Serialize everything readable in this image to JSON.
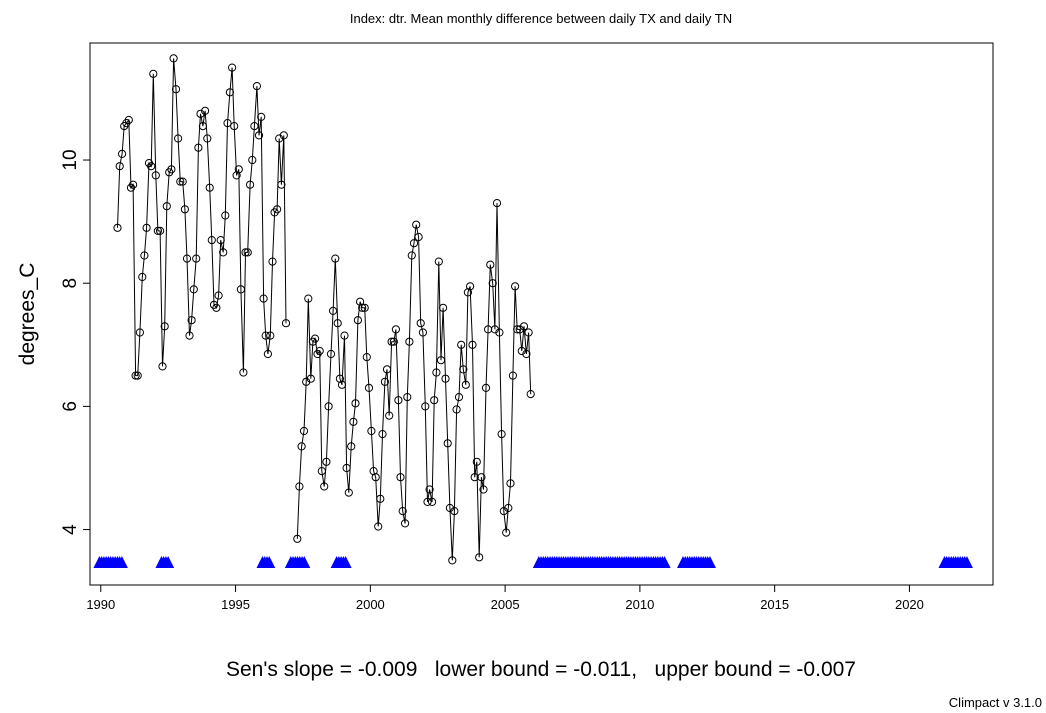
{
  "chart_data": {
    "type": "line",
    "title": "Index: dtr. Mean monthly difference between daily TX and daily TN",
    "xlabel": "",
    "ylabel": "degrees_C",
    "xlim": [
      1989.6,
      2023.1
    ],
    "ylim": [
      3.1,
      11.9
    ],
    "xticks": [
      1990,
      1995,
      2000,
      2005,
      2010,
      2015,
      2020
    ],
    "yticks": [
      4,
      6,
      8,
      10
    ],
    "xtick_labels": [
      "1990",
      "1995",
      "2000",
      "2005",
      "2010",
      "2015",
      "2020"
    ],
    "ytick_labels": [
      "4",
      "6",
      "8",
      "10"
    ],
    "grid": false,
    "series": [
      {
        "values": [
          [
            1990.62,
            8.9
          ],
          [
            1990.7,
            9.9
          ],
          [
            1990.79,
            10.1
          ],
          [
            1990.87,
            10.55
          ],
          [
            1990.95,
            10.6
          ],
          [
            1991.04,
            10.65
          ],
          [
            1991.12,
            9.55
          ],
          [
            1991.2,
            9.6
          ],
          [
            1991.29,
            6.5
          ],
          [
            1991.37,
            6.5
          ],
          [
            1991.45,
            7.2
          ],
          [
            1991.54,
            8.1
          ],
          [
            1991.62,
            8.45
          ],
          [
            1991.7,
            8.9
          ],
          [
            1991.79,
            9.95
          ],
          [
            1991.87,
            9.9
          ],
          [
            1991.95,
            11.4
          ],
          [
            1992.04,
            9.75
          ],
          [
            1992.12,
            8.85
          ],
          [
            1992.2,
            8.85
          ],
          [
            1992.29,
            6.65
          ],
          [
            1992.37,
            7.3
          ],
          [
            1992.45,
            9.25
          ],
          [
            1992.54,
            9.8
          ],
          [
            1992.62,
            9.85
          ],
          [
            1992.7,
            11.65
          ],
          [
            1992.79,
            11.15
          ],
          [
            1992.87,
            10.35
          ],
          [
            1992.95,
            9.65
          ],
          [
            1993.04,
            9.65
          ],
          [
            1993.12,
            9.2
          ],
          [
            1993.2,
            8.4
          ],
          [
            1993.29,
            7.15
          ],
          [
            1993.37,
            7.4
          ],
          [
            1993.45,
            7.9
          ],
          [
            1993.54,
            8.4
          ],
          [
            1993.62,
            10.2
          ],
          [
            1993.7,
            10.75
          ],
          [
            1993.79,
            10.55
          ],
          [
            1993.87,
            10.8
          ],
          [
            1993.95,
            10.35
          ],
          [
            1994.04,
            9.55
          ],
          [
            1994.12,
            8.7
          ],
          [
            1994.2,
            7.65
          ],
          [
            1994.29,
            7.6
          ],
          [
            1994.37,
            7.8
          ],
          [
            1994.45,
            8.7
          ],
          [
            1994.54,
            8.5
          ],
          [
            1994.62,
            9.1
          ],
          [
            1994.7,
            10.6
          ],
          [
            1994.79,
            11.1
          ],
          [
            1994.87,
            11.5
          ],
          [
            1994.95,
            10.55
          ],
          [
            1995.04,
            9.75
          ],
          [
            1995.12,
            9.85
          ],
          [
            1995.2,
            7.9
          ],
          [
            1995.29,
            6.55
          ],
          [
            1995.37,
            8.5
          ],
          [
            1995.45,
            8.5
          ],
          [
            1995.54,
            9.6
          ],
          [
            1995.62,
            10.0
          ],
          [
            1995.7,
            10.55
          ],
          [
            1995.79,
            11.2
          ],
          [
            1995.87,
            10.4
          ],
          [
            1995.95,
            10.7
          ],
          [
            1996.04,
            7.75
          ],
          [
            1996.12,
            7.15
          ],
          [
            1996.2,
            6.85
          ],
          [
            1996.29,
            7.15
          ],
          [
            1996.37,
            8.35
          ],
          [
            1996.45,
            9.15
          ],
          [
            1996.54,
            9.2
          ],
          [
            1996.62,
            10.35
          ],
          [
            1996.7,
            9.6
          ],
          [
            1996.79,
            10.4
          ],
          [
            1996.87,
            7.35
          ],
          [
            1997.29,
            3.85
          ],
          [
            1997.37,
            4.7
          ],
          [
            1997.45,
            5.35
          ],
          [
            1997.54,
            5.6
          ],
          [
            1997.62,
            6.4
          ],
          [
            1997.7,
            7.75
          ],
          [
            1997.79,
            6.45
          ],
          [
            1997.87,
            7.05
          ],
          [
            1997.95,
            7.1
          ],
          [
            1998.04,
            6.85
          ],
          [
            1998.12,
            6.9
          ],
          [
            1998.2,
            4.95
          ],
          [
            1998.29,
            4.7
          ],
          [
            1998.37,
            5.1
          ],
          [
            1998.45,
            6.0
          ],
          [
            1998.54,
            6.85
          ],
          [
            1998.62,
            7.55
          ],
          [
            1998.7,
            8.4
          ],
          [
            1998.79,
            7.35
          ],
          [
            1998.87,
            6.45
          ],
          [
            1998.95,
            6.35
          ],
          [
            1999.04,
            7.15
          ],
          [
            1999.12,
            5.0
          ],
          [
            1999.2,
            4.6
          ],
          [
            1999.29,
            5.35
          ],
          [
            1999.37,
            5.75
          ],
          [
            1999.45,
            6.05
          ],
          [
            1999.54,
            7.4
          ],
          [
            1999.62,
            7.7
          ],
          [
            1999.7,
            7.6
          ],
          [
            1999.79,
            7.6
          ],
          [
            1999.87,
            6.8
          ],
          [
            1999.95,
            6.3
          ],
          [
            2000.04,
            5.6
          ],
          [
            2000.12,
            4.95
          ],
          [
            2000.2,
            4.85
          ],
          [
            2000.29,
            4.05
          ],
          [
            2000.37,
            4.5
          ],
          [
            2000.45,
            5.55
          ],
          [
            2000.54,
            6.4
          ],
          [
            2000.62,
            6.6
          ],
          [
            2000.7,
            5.85
          ],
          [
            2000.79,
            7.05
          ],
          [
            2000.87,
            7.05
          ],
          [
            2000.95,
            7.25
          ],
          [
            2001.04,
            6.1
          ],
          [
            2001.12,
            4.85
          ],
          [
            2001.2,
            4.3
          ],
          [
            2001.29,
            4.1
          ],
          [
            2001.37,
            6.15
          ],
          [
            2001.45,
            7.05
          ],
          [
            2001.54,
            8.45
          ],
          [
            2001.62,
            8.65
          ],
          [
            2001.7,
            8.95
          ],
          [
            2001.79,
            8.75
          ],
          [
            2001.87,
            7.35
          ],
          [
            2001.95,
            7.2
          ],
          [
            2002.04,
            6.0
          ],
          [
            2002.12,
            4.45
          ],
          [
            2002.2,
            4.65
          ],
          [
            2002.29,
            4.45
          ],
          [
            2002.37,
            6.1
          ],
          [
            2002.45,
            6.55
          ],
          [
            2002.54,
            8.35
          ],
          [
            2002.62,
            6.75
          ],
          [
            2002.7,
            7.6
          ],
          [
            2002.79,
            6.45
          ],
          [
            2002.87,
            5.4
          ],
          [
            2002.95,
            4.35
          ],
          [
            2003.04,
            3.5
          ],
          [
            2003.12,
            4.3
          ],
          [
            2003.2,
            5.95
          ],
          [
            2003.29,
            6.15
          ],
          [
            2003.37,
            7.0
          ],
          [
            2003.45,
            6.6
          ],
          [
            2003.54,
            6.35
          ],
          [
            2003.62,
            7.85
          ],
          [
            2003.7,
            7.95
          ],
          [
            2003.79,
            7.0
          ],
          [
            2003.87,
            4.85
          ],
          [
            2003.95,
            5.1
          ],
          [
            2004.04,
            3.55
          ],
          [
            2004.12,
            4.85
          ],
          [
            2004.2,
            4.65
          ],
          [
            2004.29,
            6.3
          ],
          [
            2004.37,
            7.25
          ],
          [
            2004.45,
            8.3
          ],
          [
            2004.54,
            8.0
          ],
          [
            2004.62,
            7.25
          ],
          [
            2004.7,
            9.3
          ],
          [
            2004.79,
            7.2
          ],
          [
            2004.87,
            5.55
          ],
          [
            2004.95,
            4.3
          ],
          [
            2005.04,
            3.95
          ],
          [
            2005.12,
            4.35
          ],
          [
            2005.2,
            4.75
          ],
          [
            2005.29,
            6.5
          ],
          [
            2005.37,
            7.95
          ],
          [
            2005.45,
            7.25
          ],
          [
            2005.54,
            7.25
          ],
          [
            2005.62,
            6.9
          ],
          [
            2005.7,
            7.3
          ],
          [
            2005.79,
            6.85
          ],
          [
            2005.87,
            7.2
          ],
          [
            2005.95,
            6.2
          ]
        ]
      }
    ]
  },
  "caption": "Sen's slope = -0.009   lower bound = -0.011,   upper bound = -0.007",
  "credit": "Climpact v 3.1.0",
  "colors": {
    "line": "#000000",
    "points": "#000000",
    "missing_marker": "#0000ff"
  }
}
